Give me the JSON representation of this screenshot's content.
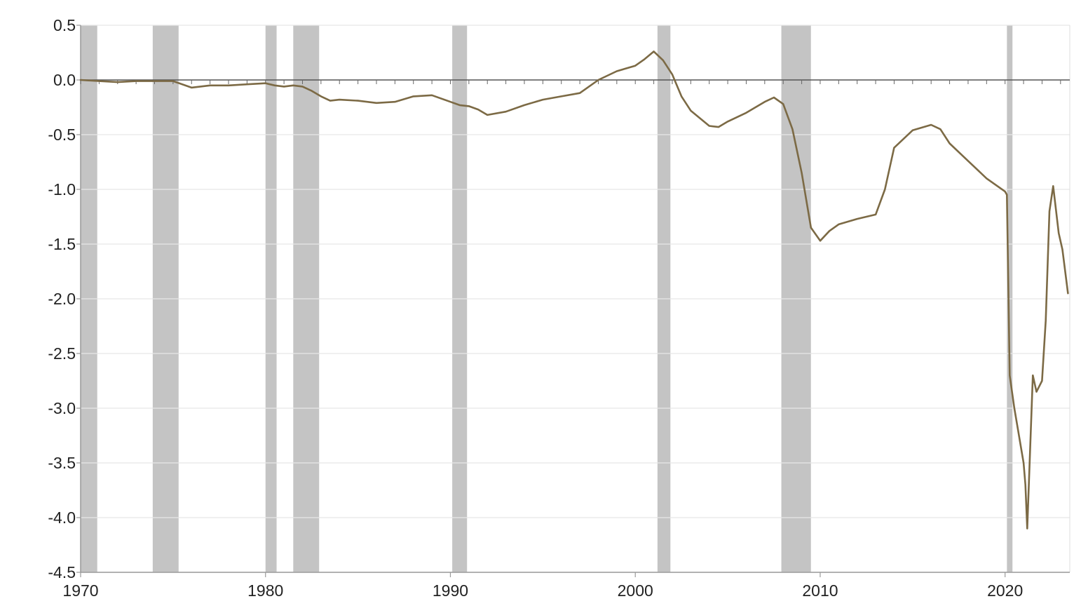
{
  "chart_data": {
    "type": "line",
    "title": "",
    "xlabel": "",
    "ylabel": "",
    "xlim": [
      1970,
      2023.5
    ],
    "ylim": [
      -4.5,
      0.5
    ],
    "grid": true,
    "legend": "none",
    "x_ticks": [
      1970,
      1980,
      1990,
      2000,
      2010,
      2020
    ],
    "x_tick_labels": [
      "1970",
      "1980",
      "1990",
      "2000",
      "2010",
      "2020"
    ],
    "y_ticks": [
      0.5,
      0.0,
      -0.5,
      -1.0,
      -1.5,
      -2.0,
      -2.5,
      -3.0,
      -3.5,
      -4.0,
      -4.5
    ],
    "y_tick_labels": [
      "0.5",
      "0.0",
      "-0.5",
      "-1.0",
      "-1.5",
      "-2.0",
      "-2.5",
      "-3.0",
      "-3.5",
      "-4.0",
      "-4.5"
    ],
    "recession_shading": [
      [
        1970.0,
        1970.9
      ],
      [
        1973.9,
        1975.3
      ],
      [
        1980.0,
        1980.6
      ],
      [
        1981.5,
        1982.9
      ],
      [
        1990.1,
        1990.9
      ],
      [
        2001.2,
        2001.9
      ],
      [
        2007.9,
        2009.5
      ],
      [
        2020.1,
        2020.4
      ]
    ],
    "series": [
      {
        "color": "#7c6a45",
        "x": [
          1970.0,
          1971.0,
          1972.0,
          1973.0,
          1974.0,
          1975.0,
          1976.0,
          1977.0,
          1978.0,
          1979.0,
          1980.0,
          1980.5,
          1981.0,
          1981.5,
          1982.0,
          1982.5,
          1983.0,
          1983.5,
          1984.0,
          1985.0,
          1986.0,
          1987.0,
          1988.0,
          1989.0,
          1990.0,
          1990.5,
          1991.0,
          1991.5,
          1992.0,
          1993.0,
          1994.0,
          1995.0,
          1996.0,
          1997.0,
          1998.0,
          1999.0,
          2000.0,
          2000.5,
          2001.0,
          2001.5,
          2002.0,
          2002.5,
          2003.0,
          2004.0,
          2004.5,
          2005.0,
          2006.0,
          2007.0,
          2007.5,
          2008.0,
          2008.5,
          2009.0,
          2009.5,
          2010.0,
          2010.5,
          2011.0,
          2012.0,
          2013.0,
          2013.5,
          2014.0,
          2015.0,
          2016.0,
          2016.5,
          2017.0,
          2018.0,
          2019.0,
          2020.0,
          2020.1,
          2020.25,
          2020.5,
          2020.7,
          2021.0,
          2021.1,
          2021.2,
          2021.35,
          2021.5,
          2021.7,
          2022.0,
          2022.2,
          2022.4,
          2022.6,
          2022.9,
          2023.1,
          2023.4
        ],
        "y": [
          0.0,
          -0.01,
          -0.02,
          -0.01,
          -0.01,
          -0.01,
          -0.07,
          -0.05,
          -0.05,
          -0.04,
          -0.03,
          -0.05,
          -0.06,
          -0.05,
          -0.06,
          -0.1,
          -0.15,
          -0.19,
          -0.18,
          -0.19,
          -0.21,
          -0.2,
          -0.15,
          -0.14,
          -0.2,
          -0.23,
          -0.24,
          -0.27,
          -0.32,
          -0.29,
          -0.23,
          -0.18,
          -0.15,
          -0.12,
          -0.0,
          0.08,
          0.13,
          0.19,
          0.26,
          0.18,
          0.05,
          -0.15,
          -0.28,
          -0.42,
          -0.43,
          -0.38,
          -0.3,
          -0.2,
          -0.16,
          -0.22,
          -0.45,
          -0.85,
          -1.35,
          -1.47,
          -1.38,
          -1.32,
          -1.27,
          -1.23,
          -1.0,
          -0.62,
          -0.46,
          -0.41,
          -0.45,
          -0.58,
          -0.74,
          -0.9,
          -1.02,
          -1.05,
          -2.7,
          -3.0,
          -3.2,
          -3.5,
          -3.7,
          -4.1,
          -3.4,
          -2.7,
          -2.85,
          -2.75,
          -2.2,
          -1.2,
          -0.97,
          -1.4,
          -1.55,
          -1.95
        ]
      }
    ]
  }
}
